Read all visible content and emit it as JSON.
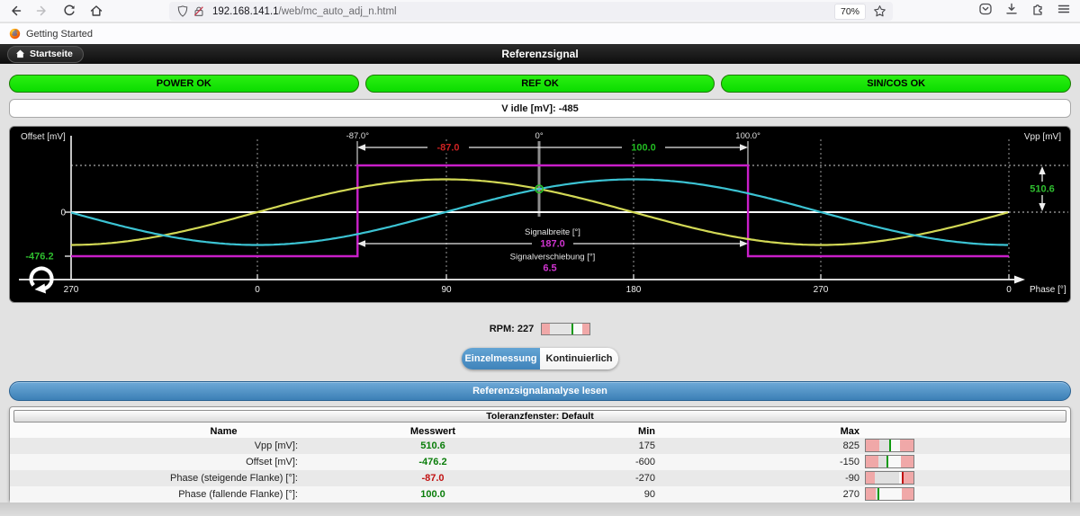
{
  "browser": {
    "url_host": "192.168.141.1",
    "url_path": "/web/mc_auto_adj_n.html",
    "zoom_badge": "70%",
    "bookmark_label": "Getting Started"
  },
  "header": {
    "back_button": "Startseite",
    "title": "Referenzsignal"
  },
  "status_buttons": [
    {
      "label": "POWER OK"
    },
    {
      "label": "REF OK"
    },
    {
      "label": "SIN/COS OK"
    }
  ],
  "v_idle": {
    "label": "V idle [mV]: -485"
  },
  "chart_data": {
    "type": "line",
    "title": "Referenzsignal",
    "xlabel": "Phase [°]",
    "ylabel_left": "Offset [mV]",
    "ylabel_right": "Vpp [mV]",
    "x_ticks": [
      "270",
      "0",
      "90",
      "180",
      "270",
      "0"
    ],
    "x_span_deg": 450,
    "ref_zero_at_phase_deg": 135,
    "grid": "dotted",
    "series": [
      {
        "name": "sin-signal",
        "color": "#d2d855",
        "shape": "sine",
        "vpp_mV": 510.6
      },
      {
        "name": "cos-signal",
        "color": "#3cc3d3",
        "shape": "negative-cosine",
        "vpp_mV": 510.6
      },
      {
        "name": "reference",
        "color": "#c81ec8",
        "shape": "square",
        "rise_deg": -87.0,
        "fall_deg": 100.0,
        "low_mV": -476.2
      }
    ],
    "annotations": {
      "top_ticks": [
        "-87.0°",
        "0°",
        "100.0°"
      ],
      "rise_label": "-87.0",
      "rise_color": "#cc2222",
      "fall_label": "100.0",
      "fall_color": "#22bb22",
      "vpp_label": "510.6",
      "offset_label": "-476.2",
      "green_value_color": "#2fbe2f",
      "zero_label": "0",
      "signalbreite_label": "Signalbreite [°]",
      "signalbreite_value": "187.0",
      "signalverschiebung_label": "Signalverschiebung [°]",
      "signalverschiebung_value": "6.5",
      "magenta_color": "#d034d0"
    }
  },
  "rpm": {
    "label": "RPM: 227",
    "meter": {
      "segments": [
        [
          "#f0a8a8",
          16
        ],
        [
          "#e4e4e4",
          45
        ],
        [
          "#0f9a0f",
          4
        ],
        [
          "#fafafa",
          20
        ],
        [
          "#f0a8a8",
          15
        ]
      ]
    }
  },
  "mode_buttons": {
    "single": "Einzelmessung",
    "continuous": "Kontinuierlich"
  },
  "action_button": "Referenzsignalanalyse lesen",
  "table": {
    "title": "Toleranzfenster: Default",
    "columns": [
      "Name",
      "Messwert",
      "Min",
      "Max"
    ],
    "rows": [
      {
        "name": "Vpp [mV]:",
        "value": "510.6",
        "value_color": "#0a7d0a",
        "min": "175",
        "max": "825",
        "meter": {
          "segments": [
            [
              "#f0a8a8",
              28
            ],
            [
              "#e0e0e0",
              21
            ],
            [
              "#0f9a0f",
              4
            ],
            [
              "#f8f8f8",
              19
            ],
            [
              "#f0a8a8",
              28
            ]
          ]
        }
      },
      {
        "name": "Offset [mV]:",
        "value": "-476.2",
        "value_color": "#0a7d0a",
        "min": "-600",
        "max": "-150",
        "meter": {
          "segments": [
            [
              "#f0a8a8",
              26
            ],
            [
              "#e0e0e0",
              17
            ],
            [
              "#0f9a0f",
              4
            ],
            [
              "#f8f8f8",
              26
            ],
            [
              "#f0a8a8",
              27
            ]
          ]
        }
      },
      {
        "name": "Phase (steigende Flanke) [°]:",
        "value": "-87.0",
        "value_color": "#c11212",
        "min": "-270",
        "max": "-90",
        "meter": {
          "segments": [
            [
              "#f0a8a8",
              19
            ],
            [
              "#e0e0e0",
              50
            ],
            [
              "#f8f8f8",
              6
            ],
            [
              "#c11212",
              4
            ],
            [
              "#f0a8a8",
              21
            ]
          ]
        }
      },
      {
        "name": "Phase (fallende Flanke) [°]:",
        "value": "100.0",
        "value_color": "#0a7d0a",
        "min": "90",
        "max": "270",
        "meter": {
          "segments": [
            [
              "#f0a8a8",
              20
            ],
            [
              "#e0e0e0",
              4
            ],
            [
              "#0f9a0f",
              4
            ],
            [
              "#f8f8f8",
              47
            ],
            [
              "#f0a8a8",
              25
            ]
          ]
        }
      }
    ]
  }
}
